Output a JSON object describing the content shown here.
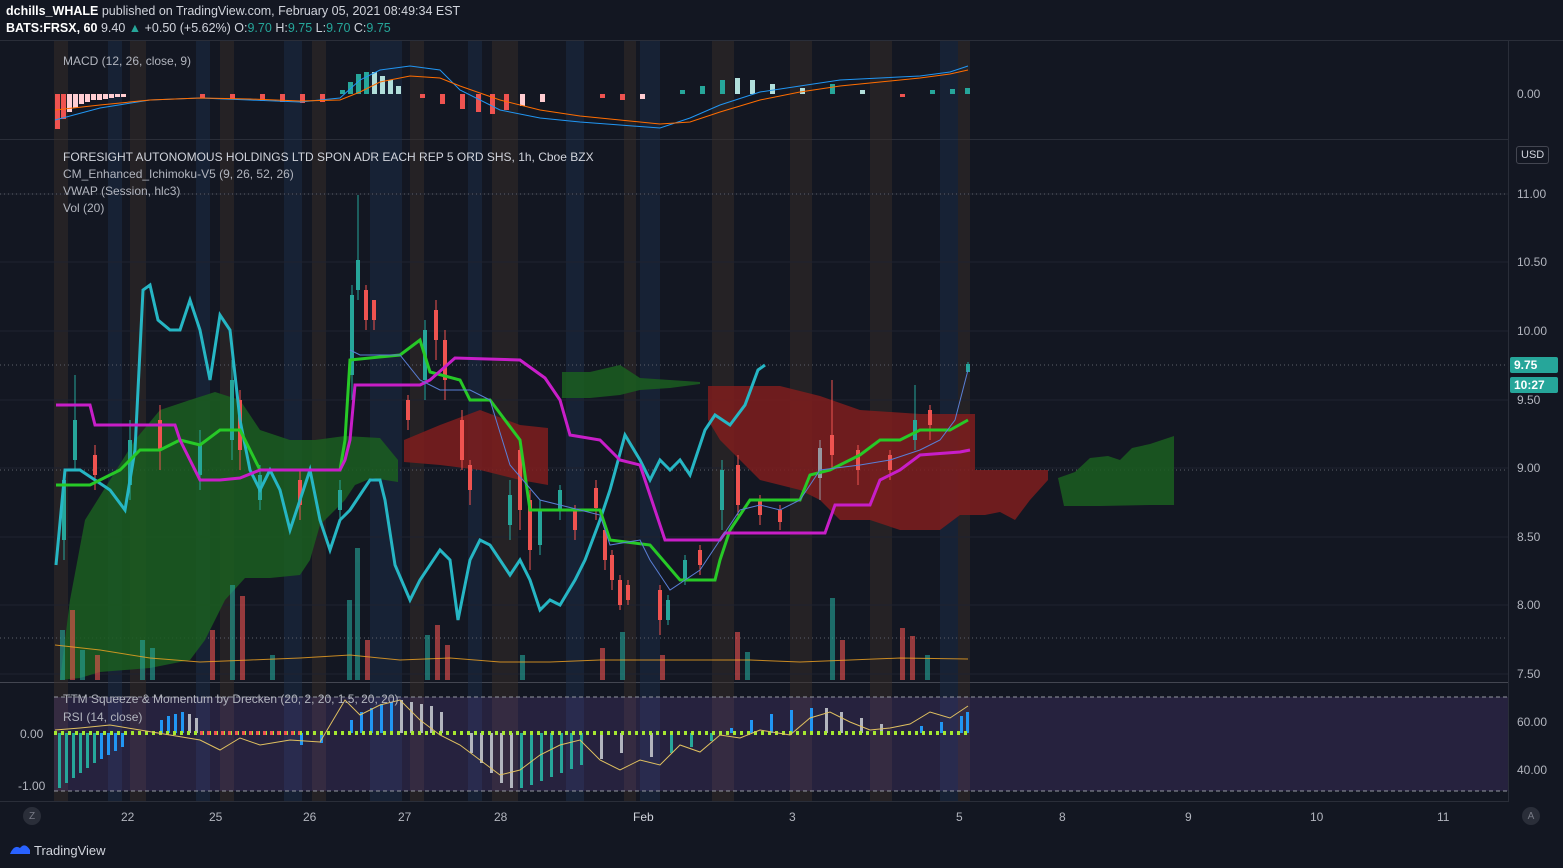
{
  "header": {
    "author": "dchills_WHALE",
    "published": "published on TradingView.com, February 05, 2021 08:49:34 EST",
    "symbol": "BATS:FRSX, 60",
    "last": "9.40",
    "change": "+0.50 (+5.62%)",
    "o_label": "O:",
    "o": "9.70",
    "h_label": "H:",
    "h": "9.75",
    "l_label": "L:",
    "l": "9.70",
    "c_label": "C:",
    "c": "9.75"
  },
  "macd": {
    "legend": "MACD (12, 26, close, 9)",
    "axis_label": "0.00"
  },
  "main": {
    "title": "FORESIGHT AUTONOMOUS HOLDINGS LTD SPON ADR EACH REP 5 ORD SHS, 1h, Cboe BZX",
    "indicators": [
      "CM_Enhanced_Ichimoku-V5 (9, 26, 52, 26)",
      "VWAP (Session, hlc3)",
      "Vol (20)"
    ],
    "currency": "USD",
    "price_axis": [
      "11.00",
      "10.50",
      "10.00",
      "9.50",
      "9.00",
      "8.50",
      "8.00",
      "7.50"
    ],
    "last_price_tag": "9.75",
    "countdown_tag": "10:27"
  },
  "lower": {
    "legend1": "TTM Squeeze & Momentum by Drecken (20, 2, 20, 1.5, 20, 20)",
    "legend2": "RSI (14, close)",
    "left_axis": [
      "0.00",
      "-1.00"
    ],
    "right_axis": [
      "60.00",
      "40.00"
    ]
  },
  "time_axis": [
    "22",
    "25",
    "26",
    "27",
    "28",
    "Feb",
    "3",
    "5",
    "8",
    "9",
    "10",
    "11"
  ],
  "footer": {
    "brand": "TradingView",
    "left_button": "Z",
    "right_button": "A"
  },
  "colors": {
    "background": "#131722",
    "up": "#26a69a",
    "down": "#ef5350",
    "cyan_line": "#26b6c4",
    "green_line": "#27c927",
    "magenta_line": "#c81ec8",
    "cloud_green": "#1b5e20",
    "cloud_red": "#7f1d1d"
  }
}
